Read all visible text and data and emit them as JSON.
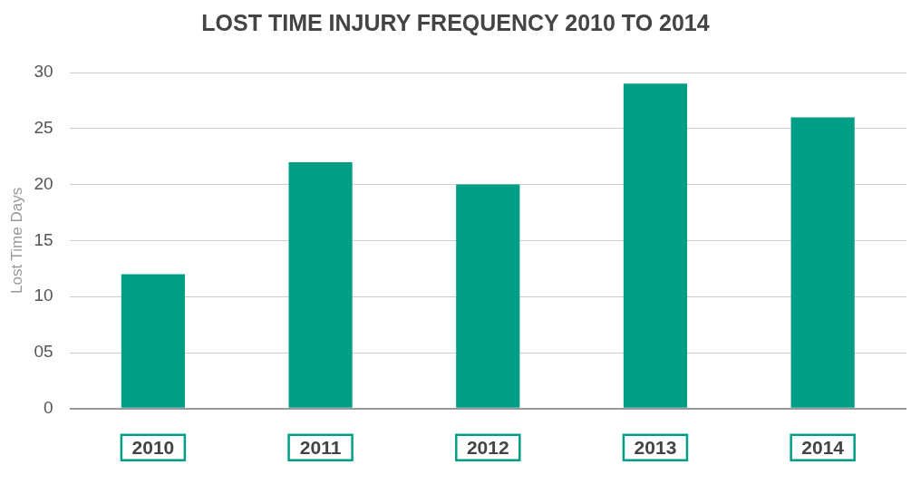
{
  "chart_data": {
    "type": "bar",
    "title": "LOST TIME INJURY FREQUENCY 2010 TO 2014",
    "ylabel": "Lost Time Days",
    "categories": [
      "2010",
      "2011",
      "2012",
      "2013",
      "2014"
    ],
    "values": [
      12,
      22,
      20,
      29,
      26
    ],
    "color": "#009e85",
    "ylim": [
      0,
      30
    ],
    "yticks": [
      0,
      {
        "value": 5,
        "label": "05"
      },
      10,
      15,
      20,
      25,
      30
    ],
    "grid": "y",
    "legend": false
  }
}
